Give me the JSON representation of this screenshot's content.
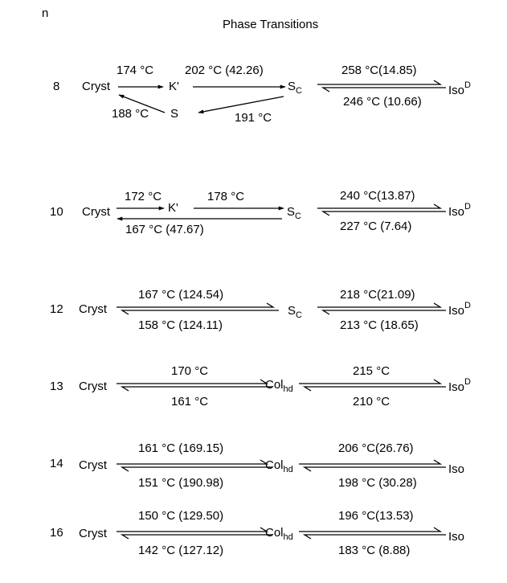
{
  "header": {
    "n_label": "n",
    "title": "Phase Transitions"
  },
  "rows": [
    {
      "n": "8",
      "cryst": "Cryst",
      "k_prime": "K'",
      "s": "S",
      "sc_main": "S",
      "sc_sub": "C",
      "iso_main": "Iso",
      "iso_sup": "D",
      "t_cryst_k": "174 °C",
      "t_k_sc": "202 °C (42.26)",
      "t_sc_s": "191 °C",
      "t_s_cryst": "188 °C",
      "t_sc_iso": "258 °C(14.85)",
      "t_iso_sc": "246 °C (10.66)"
    },
    {
      "n": "10",
      "cryst": "Cryst",
      "k_prime": "K'",
      "sc_main": "S",
      "sc_sub": "C",
      "iso_main": "Iso",
      "iso_sup": "D",
      "t_cryst_k": "172 °C",
      "t_k_sc": "178 °C",
      "t_sc_cryst": "167 °C (47.67)",
      "t_sc_iso": "240 °C(13.87)",
      "t_iso_sc": "227 °C (7.64)"
    },
    {
      "n": "12",
      "cryst": "Cryst",
      "mid_main": "S",
      "mid_sub": "C",
      "iso_main": "Iso",
      "iso_sup": "D",
      "t_up1": "167 °C (124.54)",
      "t_down1": "158 °C (124.11)",
      "t_up2": "218 °C(21.09)",
      "t_down2": "213 °C (18.65)"
    },
    {
      "n": "13",
      "cryst": "Cryst",
      "mid_main": "Col",
      "mid_sub": "hd",
      "iso_main": "Iso",
      "iso_sup": "D",
      "t_up1": "170 °C",
      "t_down1": "161 °C",
      "t_up2": "215 °C",
      "t_down2": "210 °C"
    },
    {
      "n": "14",
      "cryst": "Cryst",
      "mid_main": "Col",
      "mid_sub": "hd",
      "iso_main": "Iso",
      "iso_sup": "",
      "t_up1": "161 °C (169.15)",
      "t_down1": "151 °C (190.98)",
      "t_up2": "206 °C(26.76)",
      "t_down2": "198 °C (30.28)"
    },
    {
      "n": "16",
      "cryst": "Cryst",
      "mid_main": "Col",
      "mid_sub": "hd",
      "iso_main": "Iso",
      "iso_sup": "",
      "t_up1": "150 °C (129.50)",
      "t_down1": "142 °C (127.12)",
      "t_up2": "196 °C(13.53)",
      "t_down2": "183 °C (8.88)"
    }
  ]
}
